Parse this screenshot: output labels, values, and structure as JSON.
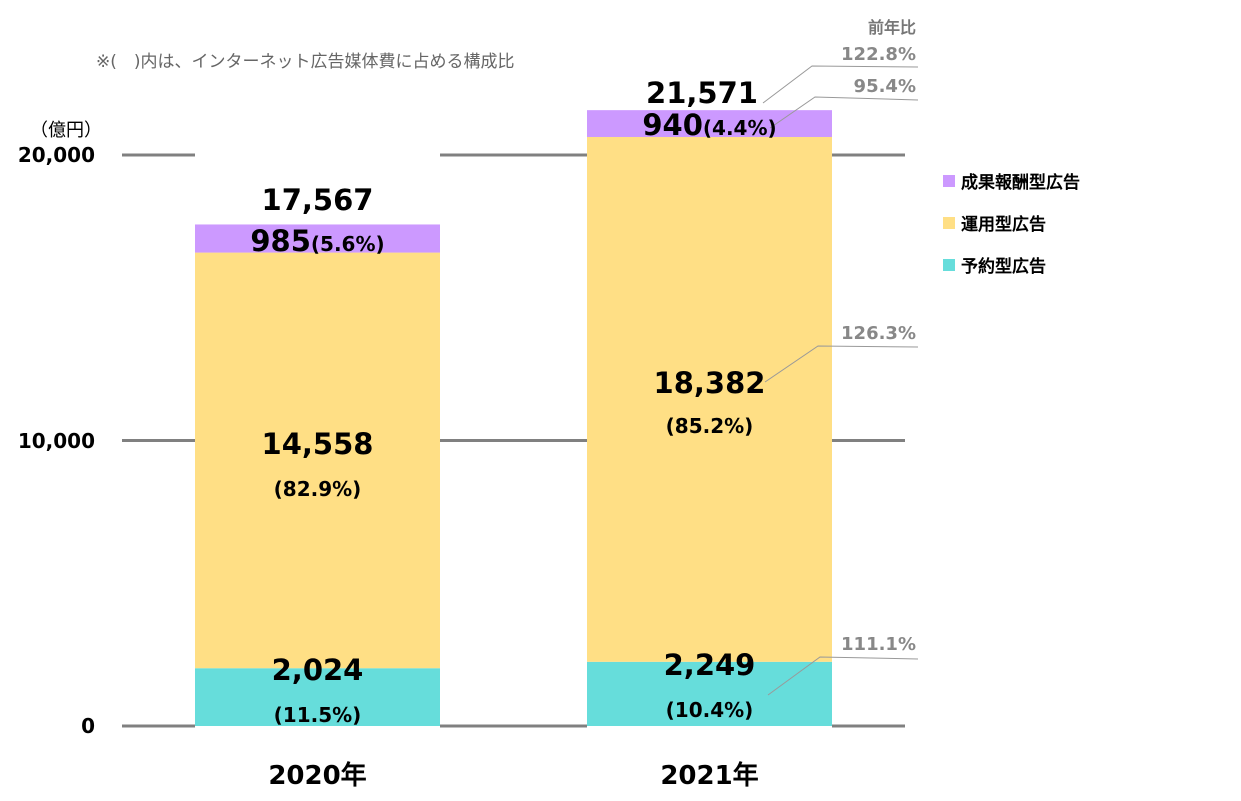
{
  "chart_data": {
    "type": "bar",
    "stacked": true,
    "note": "※(　)内は、インターネット広告媒体費に占める構成比",
    "ylabel": "（億円）",
    "ylim": [
      0,
      20000
    ],
    "yticks": [
      "0",
      "10,000",
      "20,000"
    ],
    "yticks_values": [
      0,
      10000,
      20000
    ],
    "categories": [
      "2020年",
      "2021年"
    ],
    "series": [
      {
        "name": "予約型広告",
        "color": "#66DDDB",
        "values": [
          2024,
          2249
        ],
        "labels": [
          "2,024",
          "2,249"
        ],
        "pct": [
          "(11.5%)",
          "(10.4%)"
        ]
      },
      {
        "name": "運用型広告",
        "color": "#FFDF85",
        "values": [
          14558,
          18382
        ],
        "labels": [
          "14,558",
          "18,382"
        ],
        "pct": [
          "(82.9%)",
          "(85.2%)"
        ]
      },
      {
        "name": "成果報酬型広告",
        "color": "#CC99FF",
        "values": [
          985,
          940
        ],
        "labels": [
          "985",
          "940"
        ],
        "pct": [
          "(5.6%)",
          "(4.4%)"
        ]
      }
    ],
    "totals": [
      "17,567",
      "21,571"
    ],
    "yoy_header": "前年比",
    "yoy": {
      "total": "122.8%",
      "performance": "95.4%",
      "programmatic": "126.3%",
      "reserved": "111.1%"
    },
    "legend": [
      "成果報酬型広告",
      "運用型広告",
      "予約型広告"
    ],
    "legend_colors": [
      "#CC99FF",
      "#FFDF85",
      "#66DDDB"
    ]
  }
}
